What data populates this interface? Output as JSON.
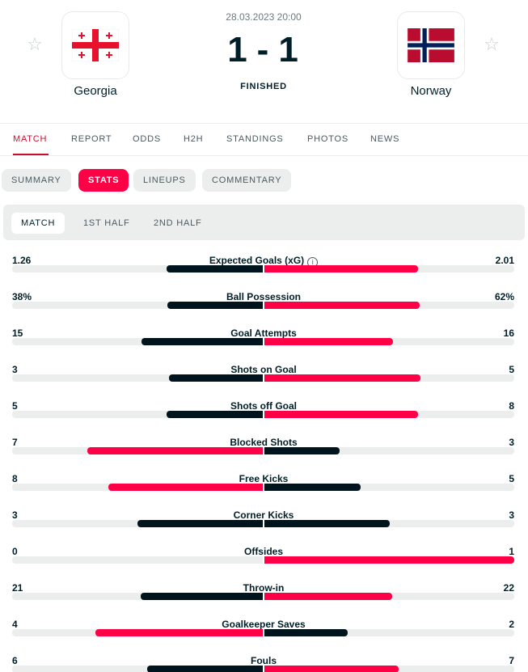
{
  "match": {
    "date": "28.03.2023 20:00",
    "home_score": "1",
    "separator": "-",
    "away_score": "1",
    "status": "FINISHED",
    "home_team": "Georgia",
    "away_team": "Norway"
  },
  "main_tabs": [
    "MATCH",
    "REPORT",
    "ODDS",
    "H2H",
    "STANDINGS",
    "PHOTOS",
    "NEWS"
  ],
  "sub_tabs": [
    "SUMMARY",
    "STATS",
    "LINEUPS",
    "COMMENTARY"
  ],
  "period_tabs": [
    "MATCH",
    "1ST HALF",
    "2ND HALF"
  ],
  "info_icon_glyph": "i",
  "colors": {
    "accent": "#ff0046",
    "dark": "#00141e",
    "track": "#eceeee"
  },
  "stats": [
    {
      "label": "Expected Goals (xG)",
      "home": "1.26",
      "away": "2.01",
      "home_value": 1.26,
      "away_value": 2.01,
      "info": true
    },
    {
      "label": "Ball Possession",
      "home": "38%",
      "away": "62%",
      "home_value": 38,
      "away_value": 62
    },
    {
      "label": "Goal Attempts",
      "home": "15",
      "away": "16",
      "home_value": 15,
      "away_value": 16
    },
    {
      "label": "Shots on Goal",
      "home": "3",
      "away": "5",
      "home_value": 3,
      "away_value": 5
    },
    {
      "label": "Shots off Goal",
      "home": "5",
      "away": "8",
      "home_value": 5,
      "away_value": 8
    },
    {
      "label": "Blocked Shots",
      "home": "7",
      "away": "3",
      "home_value": 7,
      "away_value": 3
    },
    {
      "label": "Free Kicks",
      "home": "8",
      "away": "5",
      "home_value": 8,
      "away_value": 5
    },
    {
      "label": "Corner Kicks",
      "home": "3",
      "away": "3",
      "home_value": 3,
      "away_value": 3
    },
    {
      "label": "Offsides",
      "home": "0",
      "away": "1",
      "home_value": 0,
      "away_value": 1
    },
    {
      "label": "Throw-in",
      "home": "21",
      "away": "22",
      "home_value": 21,
      "away_value": 22
    },
    {
      "label": "Goalkeeper Saves",
      "home": "4",
      "away": "2",
      "home_value": 4,
      "away_value": 2
    },
    {
      "label": "Fouls",
      "home": "6",
      "away": "7",
      "home_value": 6,
      "away_value": 7
    }
  ]
}
